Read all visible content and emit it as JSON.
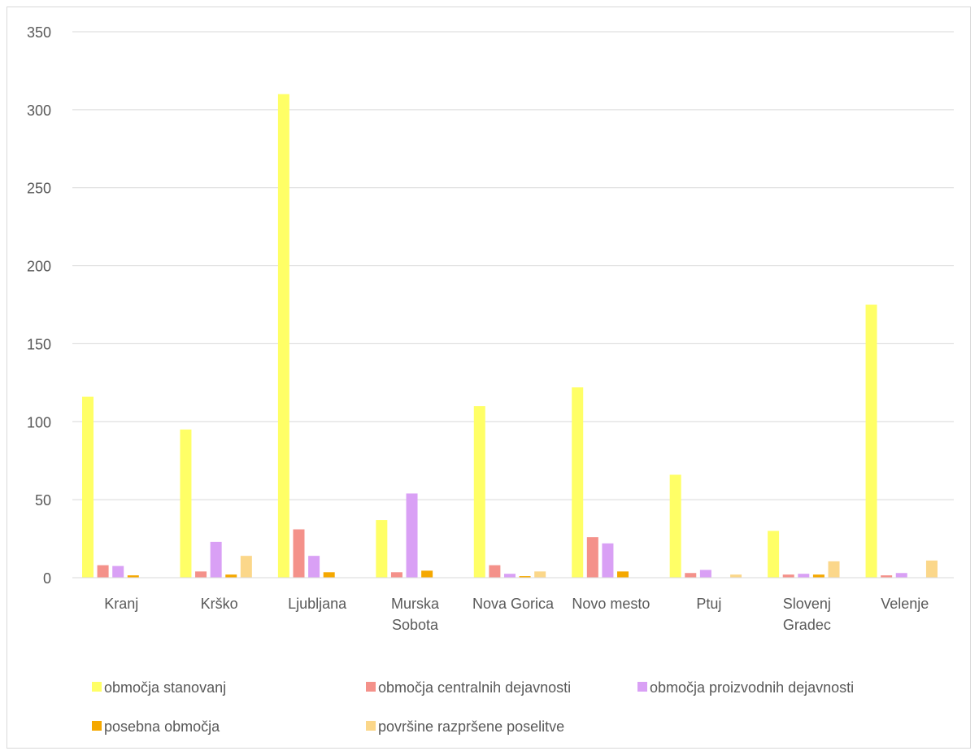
{
  "chart_data": {
    "type": "bar",
    "title": "",
    "xlabel": "",
    "ylabel": "",
    "ylim": [
      0,
      350
    ],
    "yticks": [
      0,
      50,
      100,
      150,
      200,
      250,
      300,
      350
    ],
    "grid": true,
    "legend_position": "bottom",
    "categories": [
      [
        "Kranj"
      ],
      [
        "Krško"
      ],
      [
        "Ljubljana"
      ],
      [
        "Murska",
        "Sobota"
      ],
      [
        "Nova Gorica"
      ],
      [
        "Novo mesto"
      ],
      [
        "Ptuj"
      ],
      [
        "Slovenj",
        "Gradec"
      ],
      [
        "Velenje"
      ]
    ],
    "series": [
      {
        "name": "območja stanovanj",
        "color": "#ffff66",
        "values": [
          116,
          95,
          310,
          37,
          110,
          122,
          66,
          30,
          175
        ]
      },
      {
        "name": "območja centralnih dejavnosti",
        "color": "#f4918a",
        "values": [
          8,
          4,
          31,
          3.5,
          8,
          26,
          3,
          2,
          1.5
        ]
      },
      {
        "name": "območja proizvodnih dejavnosti",
        "color": "#d9a0f5",
        "values": [
          7.5,
          23,
          14,
          54,
          2.5,
          22,
          5,
          2.5,
          3
        ]
      },
      {
        "name": "posebna območja",
        "color": "#f5a800",
        "values": [
          1.5,
          2,
          3.5,
          4.5,
          1,
          4,
          0,
          2,
          0
        ]
      },
      {
        "name": "površine razpršene poselitve",
        "color": "#fbd78a",
        "values": [
          0,
          14,
          0,
          0,
          4,
          0,
          2,
          10.5,
          11
        ]
      }
    ]
  }
}
